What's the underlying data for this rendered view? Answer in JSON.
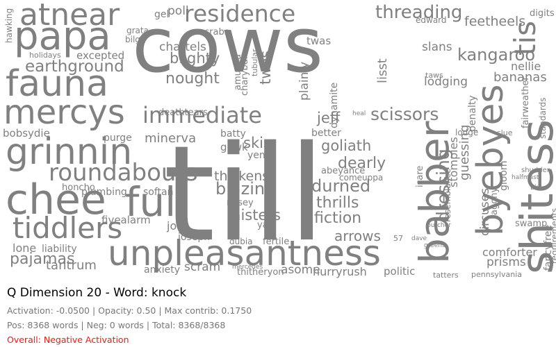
{
  "panel": {
    "title": "Q Dimension 20 - Word: knock",
    "stats_line": "Activation: -0.0500 | Opacity: 0.50 | Max contrib: 0.1750",
    "counts_line": "Pos: 8368 words | Neg: 0 words | Total: 8368/8368",
    "overall_label": "Overall: Negative Activation",
    "overall_color": "#e02020"
  },
  "cloud": {
    "word_color": "#808080",
    "words": [
      "cows",
      "till",
      "chee",
      "ful",
      "unpleasantness",
      "babber",
      "shitess",
      "byebyes",
      "fauna",
      "papa",
      "atnear",
      "mercys",
      "grinnin",
      "residence",
      "roundabouts",
      "immediate",
      "tiddlers",
      "pajamas",
      "dressing",
      "tis",
      "threading",
      "kangaroo",
      "earthground",
      "blazing",
      "durned",
      "thrills",
      "fiction",
      "goliath",
      "dearly",
      "thickens",
      "misters",
      "scissors",
      "nought",
      "twos",
      "blighty",
      "skis",
      "jeff",
      "prisms",
      "comforter",
      "bananas",
      "nellie",
      "feetheels",
      "lodging",
      "arrows",
      "circuses",
      "guessing",
      "stompies",
      "minerva",
      "tantrum",
      "scram",
      "asome",
      "hurryrush",
      "politic",
      "thitheryon",
      "anxiety",
      "joseph",
      "joes",
      "liability",
      "lone",
      "bobsydie",
      "batty",
      "gowk",
      "chattels",
      "excepted",
      "poll",
      "gel",
      "crabs",
      "grata",
      "bilge",
      "twas",
      "lisst",
      "slans",
      "edward",
      "plainly",
      "dynamite",
      "plumbing",
      "softan",
      "honcho",
      "purge",
      "fivealarm",
      "amused",
      "charybdis",
      "tubular",
      "fancyfree",
      "requirements",
      "penalty",
      "standards",
      "fairweather",
      "lodge",
      "isare",
      "resemblance",
      "agony",
      "gloom",
      "swamp",
      "digits",
      "deathtears",
      "abeyance",
      "comeuppa",
      "yap",
      "nosey",
      "yen",
      "fertile",
      "dubia",
      "holidays",
      "hawking",
      "taws",
      "better",
      "heal",
      "slue",
      "shudder",
      "halfmast",
      "biv",
      "butcher",
      "tatters",
      "pennsylvania",
      "57",
      "dave",
      "greens",
      "mercedes"
    ]
  }
}
